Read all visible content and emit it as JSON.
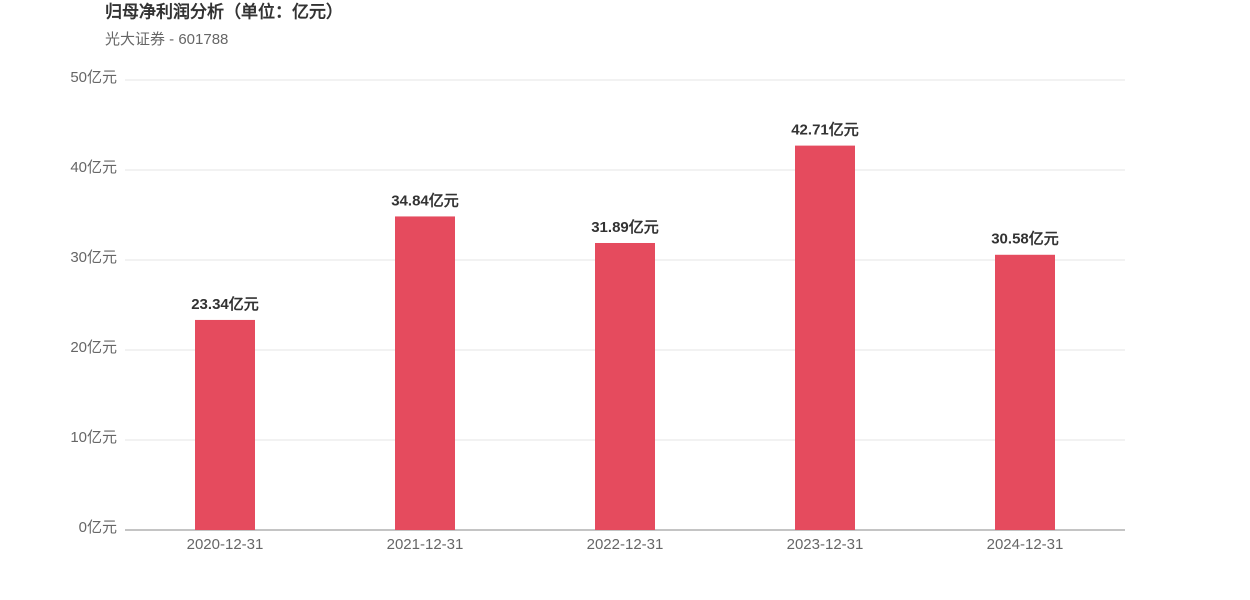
{
  "chart_data": {
    "type": "bar",
    "title": "归母净利润分析（单位：亿元）",
    "subtitle": "光大证券 - 601788",
    "categories": [
      "2020-12-31",
      "2021-12-31",
      "2022-12-31",
      "2023-12-31",
      "2024-12-31"
    ],
    "values": [
      23.34,
      34.84,
      31.89,
      42.71,
      30.58
    ],
    "value_labels": [
      "23.34亿元",
      "34.84亿元",
      "31.89亿元",
      "42.71亿元",
      "30.58亿元"
    ],
    "color": "#e54b5e",
    "ylim": [
      0,
      50
    ],
    "yticks": [
      {
        "value": 0,
        "label": "0亿元"
      },
      {
        "value": 10,
        "label": "10亿元"
      },
      {
        "value": 20,
        "label": "20亿元"
      },
      {
        "value": 30,
        "label": "30亿元"
      },
      {
        "value": 40,
        "label": "40亿元"
      },
      {
        "value": 50,
        "label": "50亿元"
      }
    ],
    "grid": true
  }
}
